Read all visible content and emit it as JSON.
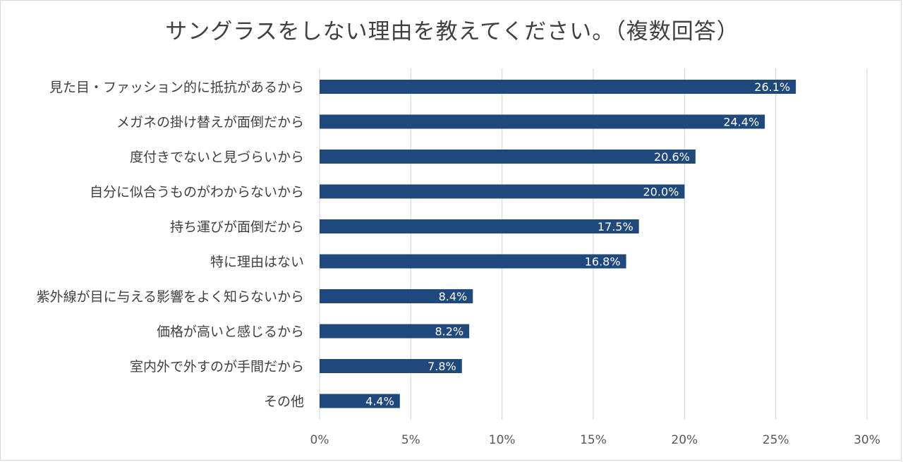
{
  "chart_data": {
    "type": "bar",
    "orientation": "horizontal",
    "title": "サングラスをしない理由を教えてください。（複数回答）",
    "categories": [
      "見た目・ファッション的に抵抗があるから",
      "メガネの掛け替えが面倒だから",
      "度付きでないと見づらいから",
      "自分に似合うものがわからないから",
      "持ち運びが面倒だから",
      "特に理由はない",
      "紫外線が目に与える影響をよく知らないから",
      "価格が高いと感じるから",
      "室内外で外すのが手間だから",
      "その他"
    ],
    "values": [
      26.1,
      24.4,
      20.6,
      20.0,
      17.5,
      16.8,
      8.4,
      8.2,
      7.8,
      4.4
    ],
    "data_labels": [
      "26.1%",
      "24.4%",
      "20.6%",
      "20.0%",
      "17.5%",
      "16.8%",
      "8.4%",
      "8.2%",
      "7.8%",
      "4.4%"
    ],
    "xlim": [
      0,
      30
    ],
    "xticks": [
      0,
      5,
      10,
      15,
      20,
      25,
      30
    ],
    "xtick_labels": [
      "0%",
      "5%",
      "10%",
      "15%",
      "20%",
      "25%",
      "30%"
    ],
    "xlabel": "",
    "ylabel": "",
    "grid": "vertical",
    "legend": "none",
    "bar_color": "#1f497d",
    "grid_color": "#d9d9d9"
  }
}
